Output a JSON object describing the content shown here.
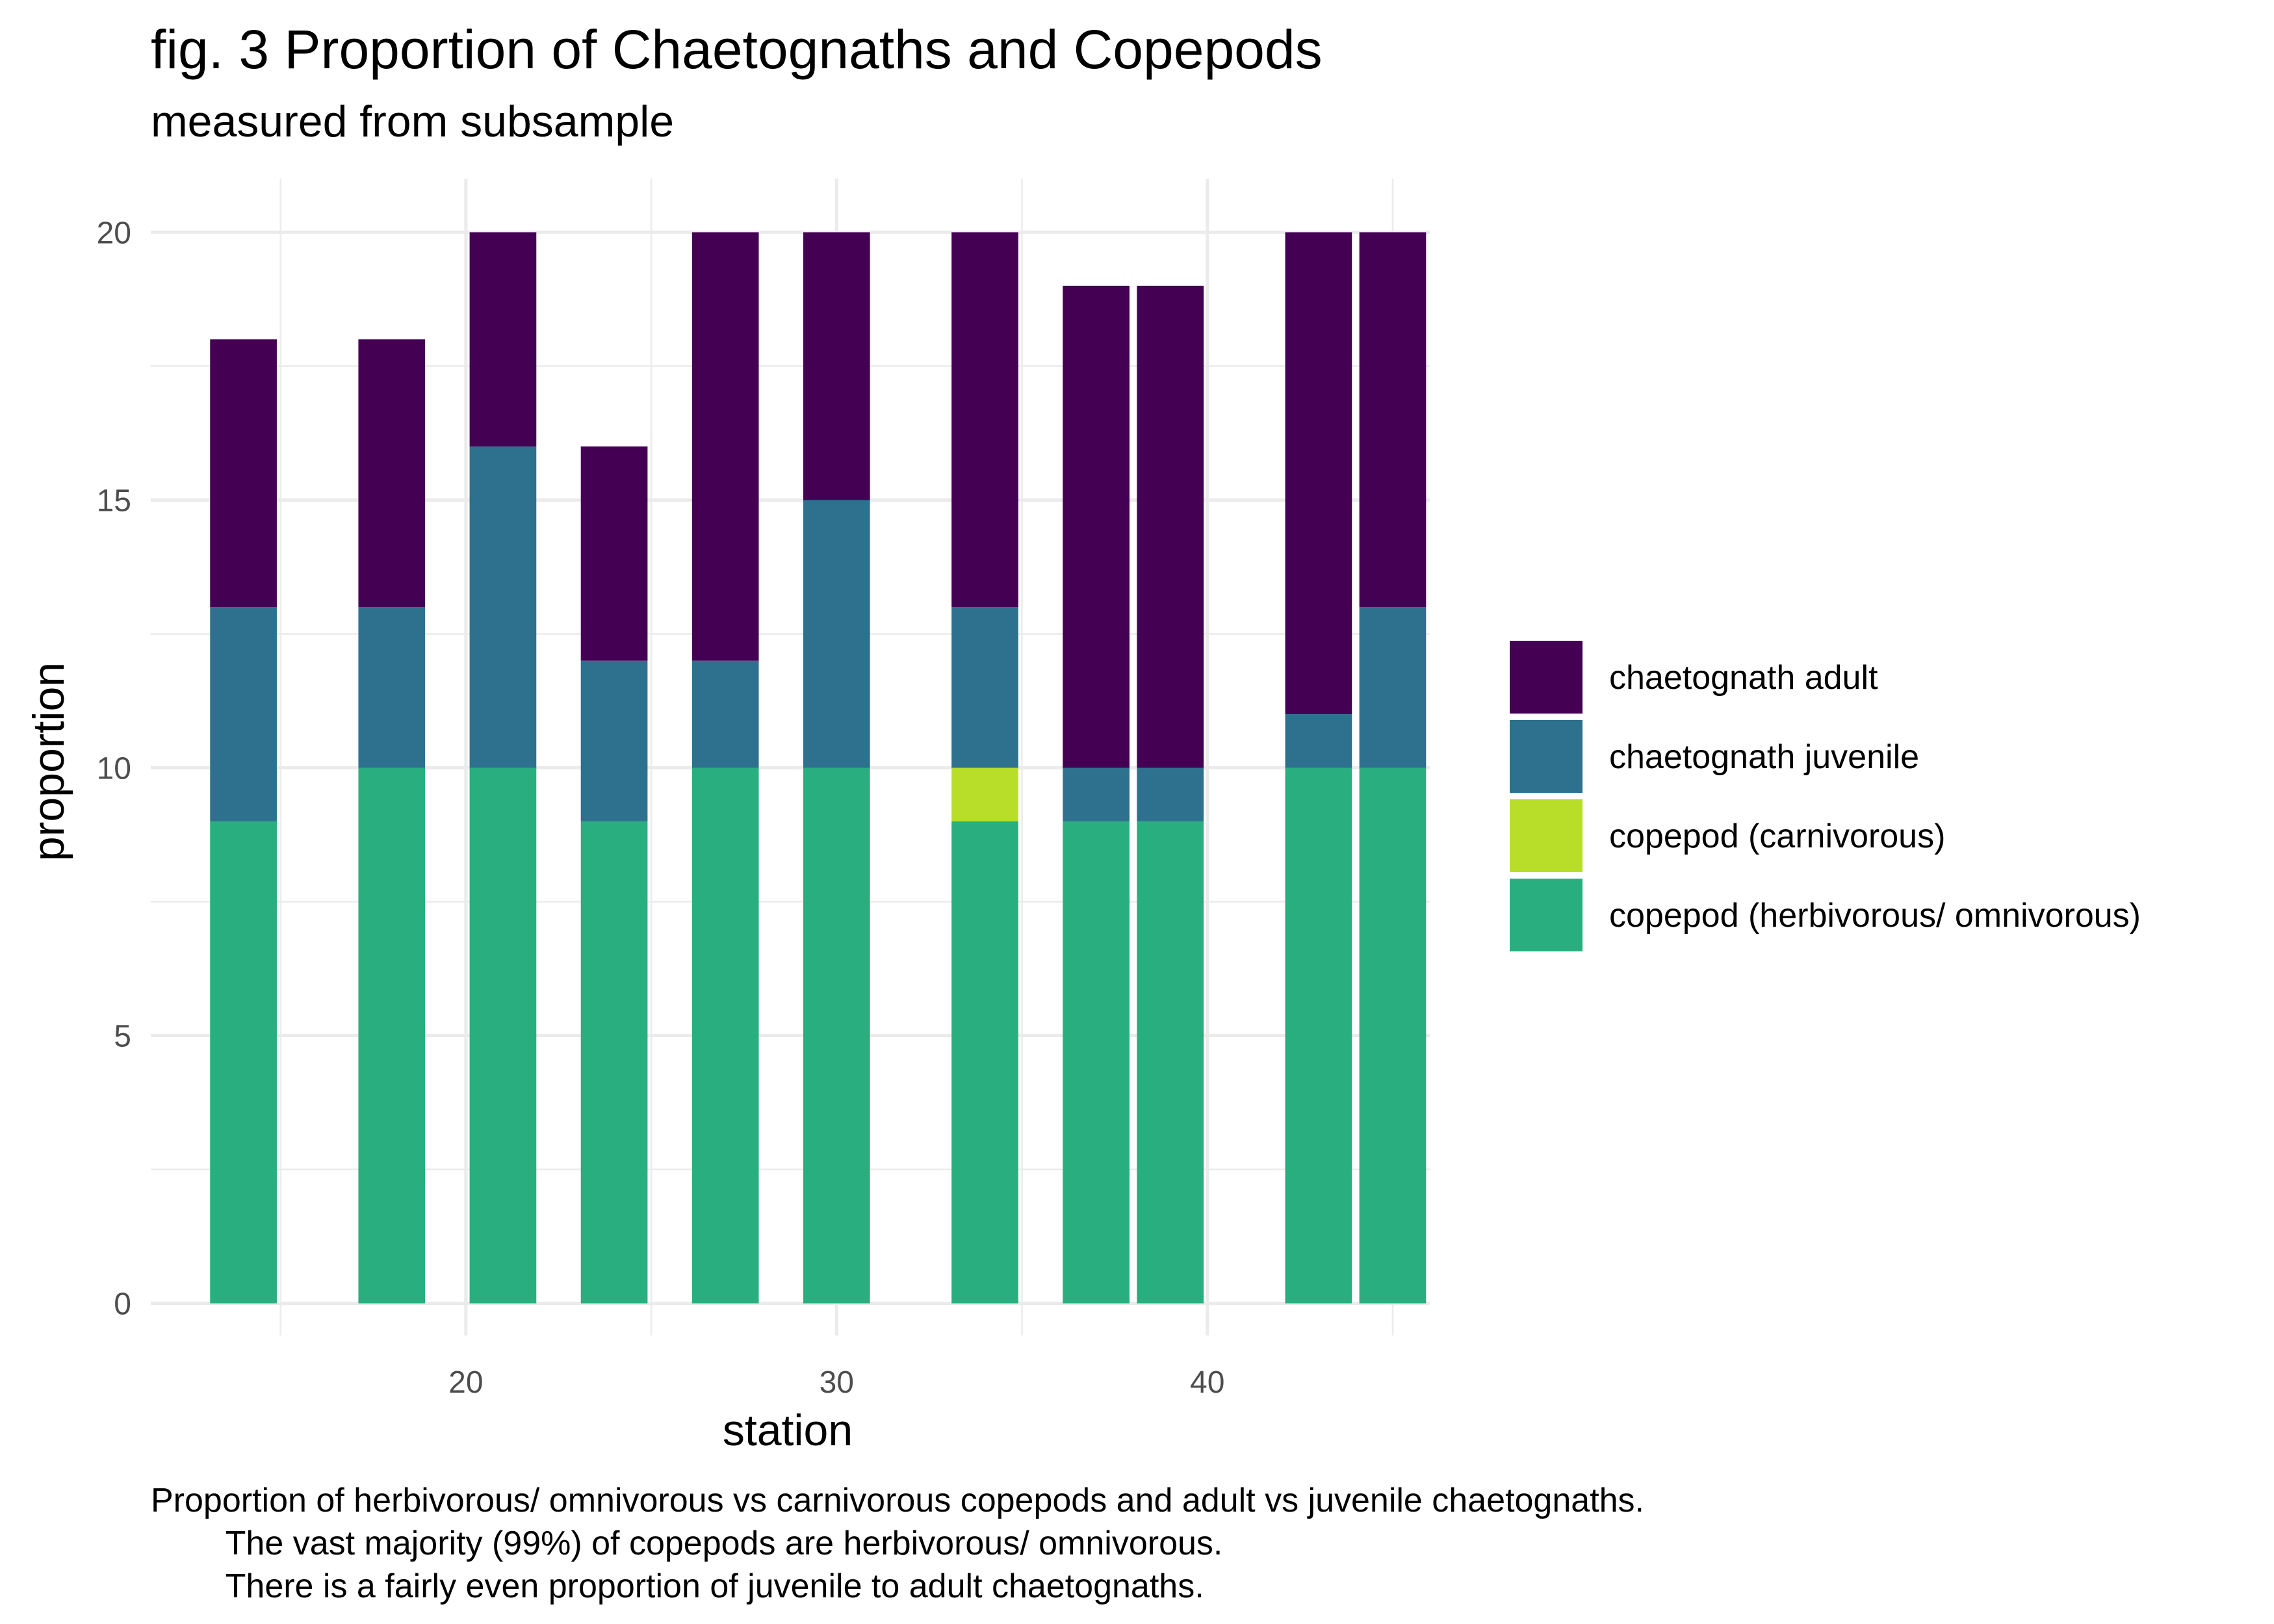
{
  "title": "fig. 3 Proportion of Chaetognaths and Copepods",
  "subtitle": "measured from subsample",
  "caption": [
    "Proportion of herbivorous/ omnivorous vs carnivorous copepods and adult vs juvenile chaetognaths.",
    "        The vast majority (99%) of copepods are herbivorous/ omnivorous.",
    "        There is a fairly even proportion of juvenile to adult chaetognaths."
  ],
  "chart_data": {
    "type": "bar",
    "stacked": true,
    "xlabel": "station",
    "ylabel": "proportion",
    "xlim": [
      11.5,
      46
    ],
    "ylim": [
      -0.6,
      21
    ],
    "x_ticks": [
      20,
      30,
      40
    ],
    "y_ticks": [
      0,
      5,
      10,
      15,
      20
    ],
    "grid": true,
    "legend_position": "right",
    "stations": [
      14,
      18,
      21,
      24,
      27,
      30,
      34,
      37,
      39,
      43,
      45
    ],
    "series": [
      {
        "name": "copepod (herbivorous/ omnivorous)",
        "color": "#29AF7F",
        "values": [
          9,
          10,
          10,
          9,
          10,
          10,
          9,
          9,
          9,
          10,
          10
        ]
      },
      {
        "name": "copepod (carnivorous)",
        "color": "#B8DE29",
        "values": [
          0,
          0,
          0,
          0,
          0,
          0,
          1,
          0,
          0,
          0,
          0
        ]
      },
      {
        "name": "chaetognath juvenile",
        "color": "#2D718E",
        "values": [
          4,
          3,
          6,
          3,
          2,
          5,
          3,
          1,
          1,
          1,
          3
        ]
      },
      {
        "name": "chaetognath adult",
        "color": "#440154",
        "values": [
          5,
          5,
          4,
          4,
          8,
          5,
          7,
          9,
          9,
          9,
          7
        ]
      }
    ],
    "legend_order": [
      "chaetognath adult",
      "chaetognath juvenile",
      "copepod (carnivorous)",
      "copepod (herbivorous/ omnivorous)"
    ]
  }
}
